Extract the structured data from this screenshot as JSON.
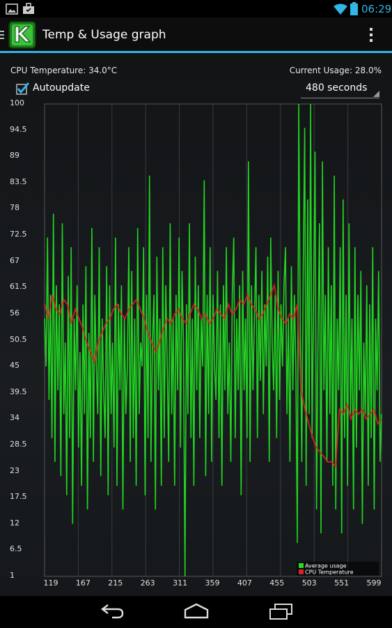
{
  "status_bar": {
    "time": "06:29"
  },
  "app_bar": {
    "title": "Temp & Usage graph"
  },
  "readouts": {
    "cpu_temperature": "CPU Temperature: 34.0°C",
    "current_usage": "Current Usage: 28.0%"
  },
  "controls": {
    "autoupdate_label": "Autoupdate",
    "autoupdate_checked": true,
    "interval_selected": "480 seconds"
  },
  "chart_data": {
    "type": "line",
    "y_ticks": [
      "100",
      "94.5",
      "89",
      "83.5",
      "78",
      "72.5",
      "67",
      "61.5",
      "56",
      "50.5",
      "45",
      "39.5",
      "34",
      "28.5",
      "23",
      "17.5",
      "12",
      "6.5",
      "1"
    ],
    "x_ticks": [
      "119",
      "167",
      "215",
      "263",
      "311",
      "359",
      "407",
      "455",
      "503",
      "551",
      "599"
    ],
    "ylim": [
      1,
      100
    ],
    "xlim": [
      119,
      599
    ],
    "grid": true,
    "legend_position": "bottom-right",
    "series": [
      {
        "name": "Average usage",
        "color": "#22dd22",
        "values": [
          55,
          45,
          72,
          38,
          60,
          30,
          77,
          25,
          62,
          40,
          58,
          22,
          75,
          35,
          50,
          18,
          64,
          30,
          70,
          12,
          55,
          40,
          62,
          28,
          48,
          20,
          58,
          35,
          66,
          15,
          52,
          30,
          74,
          25,
          60,
          45,
          35,
          70,
          22,
          55,
          40,
          30,
          66,
          18,
          62,
          35,
          50,
          28,
          72,
          20,
          58,
          40,
          62,
          15,
          55,
          35,
          45,
          70,
          25,
          65,
          30,
          55,
          20,
          74,
          35,
          50,
          45,
          70,
          18,
          60,
          30,
          85,
          25,
          50,
          60,
          15,
          68,
          40,
          55,
          20,
          70,
          30,
          62,
          45,
          25,
          75,
          35,
          55,
          20,
          60,
          40,
          72,
          28,
          65,
          50,
          1,
          58,
          35,
          75,
          30,
          55,
          20,
          68,
          40,
          62,
          30,
          55,
          45,
          84,
          22,
          60,
          35,
          70,
          25,
          60,
          45,
          38,
          65,
          30,
          58,
          20,
          62,
          40,
          70,
          35,
          50,
          25,
          60,
          72,
          30,
          55,
          40,
          62,
          18,
          65,
          40,
          55,
          30,
          88,
          25,
          62,
          40,
          55,
          70,
          30,
          60,
          42,
          65,
          35,
          58,
          45,
          68,
          25,
          72,
          50,
          40,
          60,
          30,
          65,
          38,
          58,
          45,
          62,
          70,
          35,
          55,
          25,
          66,
          40,
          60,
          45,
          8,
          100,
          55,
          25,
          65,
          95,
          20,
          80,
          35,
          100,
          30,
          60,
          90,
          15,
          50,
          75,
          10,
          88,
          40,
          60,
          25,
          70,
          35,
          62,
          20,
          85,
          15,
          55,
          40,
          70,
          10,
          80,
          30,
          60,
          20,
          75,
          35,
          55,
          15,
          70,
          28,
          60,
          40,
          65,
          12,
          50,
          35,
          62,
          20,
          58,
          30,
          70,
          15,
          55,
          40,
          65,
          25,
          35
        ]
      },
      {
        "name": "CPU Temperature",
        "color": "#dd2222",
        "values": [
          58,
          55,
          60,
          57,
          56,
          59,
          58,
          54,
          57,
          55,
          53,
          50,
          48,
          46,
          50,
          52,
          54,
          55,
          57,
          58,
          56,
          55,
          57,
          58,
          59,
          57,
          55,
          52,
          50,
          48,
          50,
          53,
          55,
          54,
          56,
          57,
          55,
          54,
          56,
          58,
          57,
          55,
          56,
          54,
          55,
          57,
          56,
          55,
          58,
          56,
          57,
          59,
          58,
          60,
          58,
          57,
          55,
          56,
          58,
          60,
          62,
          57,
          55,
          54,
          56,
          55,
          58,
          40,
          36,
          33,
          30,
          28,
          27,
          26,
          25,
          25,
          24,
          36,
          35,
          37,
          34,
          36,
          35,
          36,
          34,
          35,
          36,
          33,
          34
        ]
      }
    ]
  },
  "navigation": {
    "back": "back",
    "home": "home",
    "recents": "recents"
  }
}
